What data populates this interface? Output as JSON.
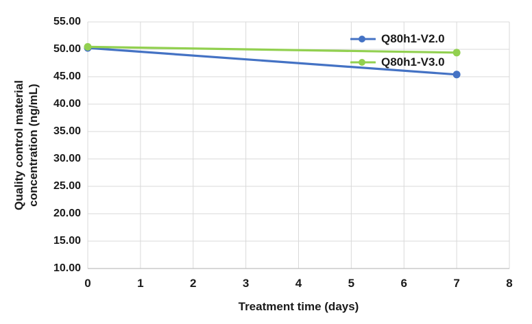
{
  "chart_data": {
    "type": "line",
    "title": "",
    "xlabel": "Treatment time (days)",
    "ylabel": "Quality control material concentration (ng/mL)",
    "ylabel_lines": [
      "Quality control material",
      "concentration (ng/mL)"
    ],
    "xlim": [
      0,
      8
    ],
    "ylim": [
      10,
      55
    ],
    "xticks": [
      "0",
      "1",
      "2",
      "3",
      "4",
      "5",
      "6",
      "7",
      "8"
    ],
    "yticks": [
      "55.00",
      "50.00",
      "45.00",
      "40.00",
      "35.00",
      "30.00",
      "25.00",
      "20.00",
      "15.00",
      "10.00"
    ],
    "grid": true,
    "grid_color": "#d9d9d9",
    "axis_line_color": "#bfbfbf",
    "tick_text_color": "#1a1a1a",
    "legend_position": "inside-top-right",
    "series": [
      {
        "name": "Q80h1-V2.0",
        "color": "#4472C4",
        "x": [
          0,
          7
        ],
        "y": [
          50.25,
          45.4
        ]
      },
      {
        "name": "Q80h1-V3.0",
        "color": "#92D050",
        "x": [
          0,
          7
        ],
        "y": [
          50.45,
          49.4
        ]
      }
    ]
  }
}
